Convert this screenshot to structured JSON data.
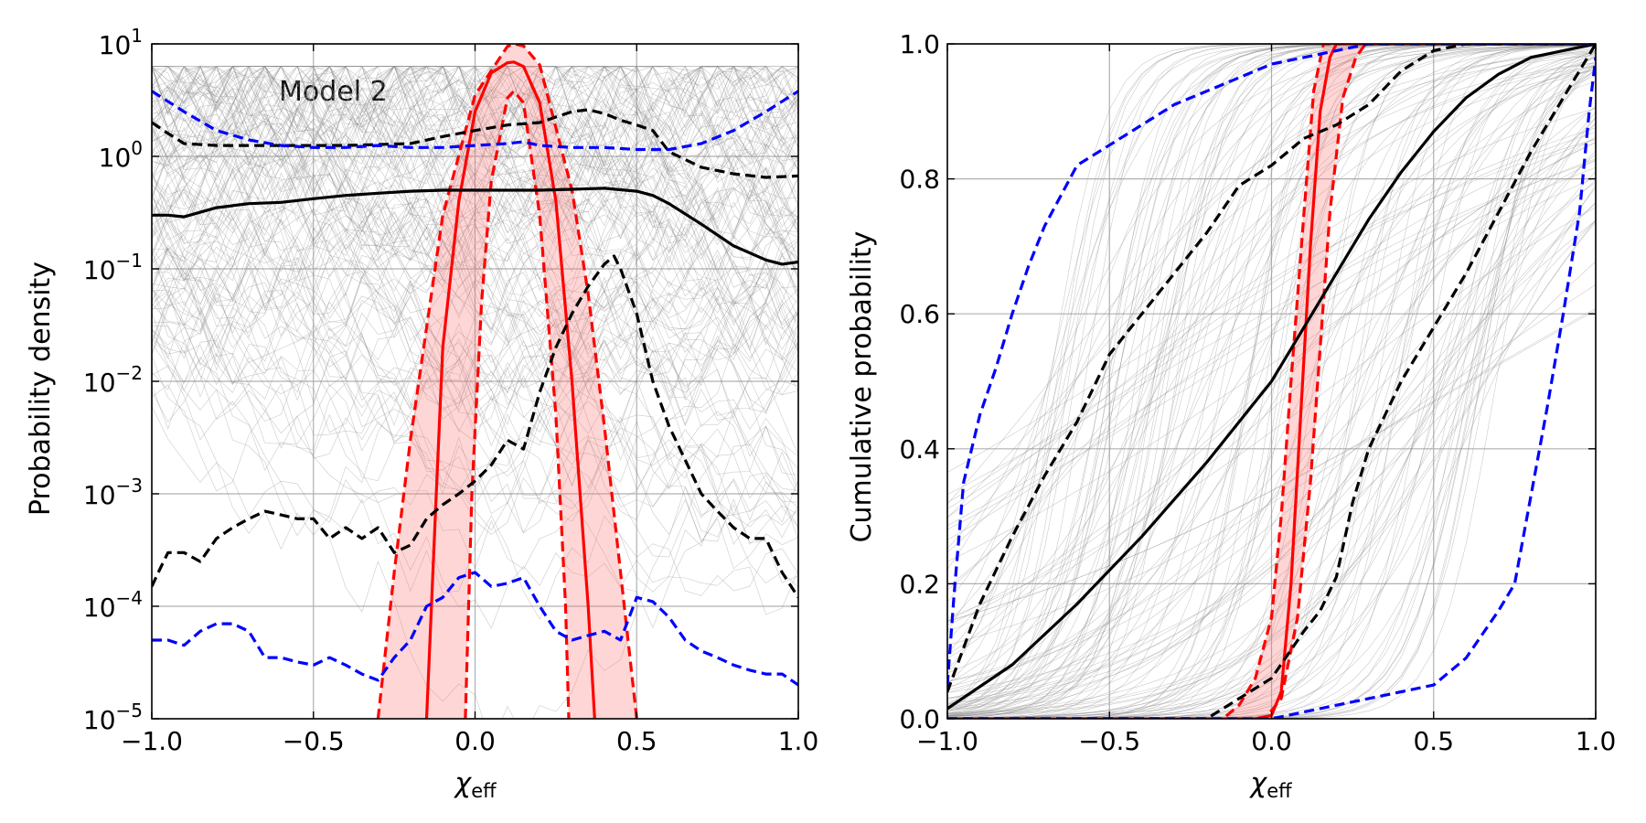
{
  "chart_data": [
    {
      "type": "line",
      "yscale": "log",
      "xlim": [
        -1.0,
        1.0
      ],
      "ylim": [
        1e-05,
        10
      ],
      "xlabel": "χ_eff",
      "xlabel_main": "χ",
      "xlabel_sub": "eff",
      "ylabel": "Probability density",
      "annotation": "Model 2",
      "grid": true,
      "x_ticks": [
        -1.0,
        -0.5,
        0.0,
        0.5,
        1.0
      ],
      "x_tick_labels": [
        "−1.0",
        "−0.5",
        "0.0",
        "0.5",
        "1.0"
      ],
      "y_ticks": [
        1e-05,
        0.0001,
        0.001,
        0.01,
        0.1,
        1,
        10
      ],
      "y_tick_labels": [
        {
          "base": "10",
          "exp": "−5"
        },
        {
          "base": "10",
          "exp": "−4"
        },
        {
          "base": "10",
          "exp": "−3"
        },
        {
          "base": "10",
          "exp": "−2"
        },
        {
          "base": "10",
          "exp": "−1"
        },
        {
          "base": "10",
          "exp": "0"
        },
        {
          "base": "10",
          "exp": "1"
        }
      ],
      "series": [
        {
          "role": "red-median",
          "color": "#ff0000",
          "style": "solid",
          "x": [
            -0.15,
            -0.12,
            -0.1,
            -0.05,
            0.0,
            0.05,
            0.1,
            0.12,
            0.15,
            0.2,
            0.25,
            0.3,
            0.35,
            0.37
          ],
          "y": [
            1e-05,
            0.001,
            0.02,
            0.4,
            2.5,
            5.5,
            6.8,
            6.9,
            6.3,
            3.0,
            0.4,
            0.01,
            0.0001,
            1e-05
          ]
        },
        {
          "role": "red-upper",
          "color": "#ff0000",
          "style": "dashed",
          "x": [
            -0.3,
            -0.25,
            -0.2,
            -0.1,
            0.0,
            0.1,
            0.12,
            0.15,
            0.2,
            0.3,
            0.35,
            0.4,
            0.45,
            0.5
          ],
          "y": [
            1e-05,
            0.0002,
            0.003,
            0.3,
            3.5,
            9.5,
            10.0,
            9.6,
            6.5,
            0.5,
            0.06,
            0.004,
            0.0002,
            1e-05
          ]
        },
        {
          "role": "red-lower",
          "color": "#ff0000",
          "style": "dashed",
          "x": [
            -0.03,
            -0.01,
            0.02,
            0.05,
            0.1,
            0.12,
            0.15,
            0.2,
            0.25,
            0.28,
            0.29
          ],
          "y": [
            1e-05,
            0.001,
            0.05,
            0.6,
            3.3,
            3.8,
            3.0,
            0.3,
            0.005,
            0.0001,
            1e-05
          ]
        },
        {
          "role": "black-median",
          "color": "#000000",
          "style": "solid",
          "x": [
            -1.0,
            -0.95,
            -0.9,
            -0.8,
            -0.7,
            -0.6,
            -0.5,
            -0.4,
            -0.3,
            -0.2,
            -0.1,
            0.0,
            0.1,
            0.2,
            0.3,
            0.4,
            0.5,
            0.55,
            0.6,
            0.7,
            0.8,
            0.9,
            0.95,
            1.0
          ],
          "y": [
            0.3,
            0.3,
            0.29,
            0.35,
            0.38,
            0.39,
            0.42,
            0.45,
            0.47,
            0.49,
            0.5,
            0.5,
            0.5,
            0.5,
            0.51,
            0.52,
            0.49,
            0.45,
            0.38,
            0.25,
            0.16,
            0.12,
            0.11,
            0.115
          ]
        },
        {
          "role": "black-upper",
          "color": "#000000",
          "style": "dashed",
          "x": [
            -1.0,
            -0.95,
            -0.9,
            -0.8,
            -0.6,
            -0.4,
            -0.2,
            -0.1,
            0.0,
            0.1,
            0.2,
            0.3,
            0.35,
            0.4,
            0.45,
            0.5,
            0.55,
            0.6,
            0.7,
            0.8,
            0.9,
            1.0
          ],
          "y": [
            2.0,
            1.6,
            1.3,
            1.25,
            1.25,
            1.25,
            1.3,
            1.5,
            1.7,
            1.9,
            2.0,
            2.5,
            2.6,
            2.4,
            2.1,
            1.9,
            1.7,
            1.1,
            0.8,
            0.7,
            0.65,
            0.67
          ]
        },
        {
          "role": "black-lower",
          "color": "#000000",
          "style": "dashed",
          "x": [
            -1.0,
            -0.98,
            -0.95,
            -0.9,
            -0.85,
            -0.8,
            -0.75,
            -0.7,
            -0.65,
            -0.6,
            -0.55,
            -0.5,
            -0.45,
            -0.4,
            -0.35,
            -0.3,
            -0.25,
            -0.2,
            -0.15,
            -0.1,
            -0.05,
            0.0,
            0.05,
            0.1,
            0.15,
            0.2,
            0.25,
            0.3,
            0.35,
            0.4,
            0.43,
            0.45,
            0.5,
            0.55,
            0.6,
            0.65,
            0.7,
            0.75,
            0.8,
            0.85,
            0.9,
            0.95,
            1.0
          ],
          "y": [
            0.00015,
            0.0002,
            0.0003,
            0.0003,
            0.00025,
            0.0004,
            0.0005,
            0.0006,
            0.0007,
            0.00065,
            0.0006,
            0.0006,
            0.0004,
            0.0005,
            0.0004,
            0.0005,
            0.0003,
            0.00035,
            0.0006,
            0.0008,
            0.001,
            0.0013,
            0.0018,
            0.003,
            0.0025,
            0.008,
            0.02,
            0.04,
            0.07,
            0.11,
            0.13,
            0.1,
            0.04,
            0.01,
            0.004,
            0.002,
            0.001,
            0.0007,
            0.0005,
            0.0004,
            0.0004,
            0.0002,
            0.00012
          ]
        },
        {
          "role": "blue-upper",
          "color": "#0000ff",
          "style": "dashed",
          "x": [
            -1.0,
            -0.9,
            -0.8,
            -0.7,
            -0.6,
            -0.5,
            -0.4,
            -0.3,
            -0.2,
            -0.1,
            0.0,
            0.1,
            0.15,
            0.2,
            0.3,
            0.4,
            0.5,
            0.6,
            0.7,
            0.8,
            0.9,
            1.0
          ],
          "y": [
            3.8,
            2.5,
            1.7,
            1.4,
            1.25,
            1.2,
            1.2,
            1.25,
            1.2,
            1.2,
            1.25,
            1.3,
            1.35,
            1.25,
            1.2,
            1.2,
            1.15,
            1.15,
            1.3,
            1.7,
            2.5,
            3.8
          ]
        },
        {
          "role": "blue-lower",
          "color": "#0000ff",
          "style": "dashed",
          "x": [
            -1.0,
            -0.95,
            -0.9,
            -0.85,
            -0.8,
            -0.75,
            -0.7,
            -0.65,
            -0.6,
            -0.55,
            -0.5,
            -0.45,
            -0.4,
            -0.35,
            -0.3,
            -0.25,
            -0.2,
            -0.15,
            -0.1,
            -0.05,
            0.0,
            0.05,
            0.1,
            0.15,
            0.2,
            0.25,
            0.3,
            0.35,
            0.4,
            0.45,
            0.5,
            0.55,
            0.6,
            0.65,
            0.7,
            0.75,
            0.8,
            0.85,
            0.9,
            0.95,
            1.0
          ],
          "y": [
            5e-05,
            5e-05,
            4.5e-05,
            6e-05,
            7e-05,
            7e-05,
            6e-05,
            3.5e-05,
            3.5e-05,
            3.2e-05,
            3e-05,
            3.5e-05,
            3e-05,
            2.5e-05,
            2.2e-05,
            3.5e-05,
            5e-05,
            0.0001,
            0.00012,
            0.00018,
            0.0002,
            0.00015,
            0.00016,
            0.00018,
            0.0001,
            6e-05,
            5e-05,
            5.5e-05,
            6e-05,
            5e-05,
            0.00012,
            0.00011,
            8e-05,
            5e-05,
            4e-05,
            3.5e-05,
            3e-05,
            2.7e-05,
            2.5e-05,
            2.5e-05,
            2e-05
          ]
        }
      ]
    },
    {
      "type": "line",
      "xlim": [
        -1.0,
        1.0
      ],
      "ylim": [
        0.0,
        1.0
      ],
      "xlabel": "χ_eff",
      "xlabel_main": "χ",
      "xlabel_sub": "eff",
      "ylabel": "Cumulative probability",
      "grid": true,
      "x_ticks": [
        -1.0,
        -0.5,
        0.0,
        0.5,
        1.0
      ],
      "x_tick_labels": [
        "−1.0",
        "−0.5",
        "0.0",
        "0.5",
        "1.0"
      ],
      "y_ticks": [
        0.0,
        0.2,
        0.4,
        0.6,
        0.8,
        1.0
      ],
      "y_tick_labels": [
        "0.0",
        "0.2",
        "0.4",
        "0.6",
        "0.8",
        "1.0"
      ],
      "series": [
        {
          "role": "red-median",
          "color": "#ff0000",
          "style": "solid",
          "x": [
            -1.0,
            -0.05,
            0.0,
            0.03,
            0.06,
            0.09,
            0.12,
            0.15,
            0.18,
            0.2,
            1.0
          ],
          "y": [
            0.0,
            0.0,
            0.005,
            0.04,
            0.2,
            0.45,
            0.7,
            0.9,
            0.98,
            1.0,
            1.0
          ]
        },
        {
          "role": "red-left",
          "color": "#ff0000",
          "style": "dashed",
          "x": [
            -1.0,
            -0.15,
            -0.1,
            -0.05,
            0.0,
            0.03,
            0.06,
            0.1,
            0.13,
            0.16,
            1.0
          ],
          "y": [
            0.0,
            0.0,
            0.02,
            0.06,
            0.15,
            0.3,
            0.5,
            0.75,
            0.93,
            1.0,
            1.0
          ]
        },
        {
          "role": "red-right",
          "color": "#ff0000",
          "style": "dashed",
          "x": [
            -1.0,
            -0.02,
            0.03,
            0.08,
            0.12,
            0.15,
            0.18,
            0.22,
            0.26,
            0.29,
            1.0
          ],
          "y": [
            0.0,
            0.0,
            0.03,
            0.15,
            0.35,
            0.55,
            0.75,
            0.92,
            0.98,
            1.0,
            1.0
          ]
        },
        {
          "role": "black-median",
          "color": "#000000",
          "style": "solid",
          "x": [
            -1.0,
            -0.8,
            -0.6,
            -0.4,
            -0.2,
            0.0,
            0.1,
            0.2,
            0.3,
            0.4,
            0.5,
            0.6,
            0.7,
            0.8,
            0.9,
            1.0
          ],
          "y": [
            0.015,
            0.08,
            0.17,
            0.27,
            0.38,
            0.5,
            0.58,
            0.66,
            0.74,
            0.81,
            0.87,
            0.92,
            0.955,
            0.98,
            0.99,
            1.0
          ]
        },
        {
          "role": "black-upper",
          "color": "#000000",
          "style": "dashed",
          "x": [
            -1.0,
            -0.9,
            -0.8,
            -0.7,
            -0.6,
            -0.5,
            -0.4,
            -0.3,
            -0.2,
            -0.1,
            0.0,
            0.1,
            0.2,
            0.3,
            0.4,
            0.5,
            0.6,
            0.7,
            0.8,
            0.9,
            1.0
          ],
          "y": [
            0.04,
            0.17,
            0.27,
            0.36,
            0.44,
            0.54,
            0.6,
            0.66,
            0.72,
            0.79,
            0.82,
            0.86,
            0.88,
            0.91,
            0.96,
            0.99,
            1.0,
            1.0,
            1.0,
            1.0,
            1.0
          ]
        },
        {
          "role": "black-lower",
          "color": "#000000",
          "style": "dashed",
          "x": [
            -1.0,
            -0.2,
            -0.1,
            0.0,
            0.1,
            0.15,
            0.2,
            0.25,
            0.3,
            0.35,
            0.4,
            0.5,
            0.6,
            0.7,
            0.8,
            0.9,
            1.0
          ],
          "y": [
            0.0,
            0.0,
            0.03,
            0.06,
            0.13,
            0.16,
            0.21,
            0.32,
            0.4,
            0.45,
            0.5,
            0.58,
            0.66,
            0.75,
            0.84,
            0.92,
            1.0
          ]
        },
        {
          "role": "blue-upper",
          "color": "#0000ff",
          "style": "dashed",
          "x": [
            -1.0,
            -0.98,
            -0.95,
            -0.9,
            -0.85,
            -0.8,
            -0.75,
            -0.7,
            -0.6,
            -0.5,
            -0.4,
            -0.3,
            -0.2,
            -0.1,
            0.0,
            0.1,
            0.2,
            0.3,
            0.4,
            0.5,
            0.6,
            1.0
          ],
          "y": [
            0.05,
            0.18,
            0.35,
            0.45,
            0.52,
            0.6,
            0.67,
            0.73,
            0.82,
            0.85,
            0.88,
            0.91,
            0.93,
            0.95,
            0.97,
            0.98,
            0.99,
            1.0,
            1.0,
            1.0,
            1.0,
            1.0
          ]
        },
        {
          "role": "blue-lower",
          "color": "#0000ff",
          "style": "dashed",
          "x": [
            -1.0,
            -0.4,
            -0.2,
            0.0,
            0.1,
            0.2,
            0.3,
            0.4,
            0.5,
            0.6,
            0.7,
            0.75,
            0.8,
            0.85,
            0.9,
            0.95,
            0.98,
            1.0
          ],
          "y": [
            0.0,
            0.0,
            0.0,
            0.0,
            0.01,
            0.02,
            0.03,
            0.04,
            0.05,
            0.09,
            0.16,
            0.2,
            0.33,
            0.46,
            0.6,
            0.75,
            0.9,
            0.98
          ]
        }
      ]
    }
  ]
}
